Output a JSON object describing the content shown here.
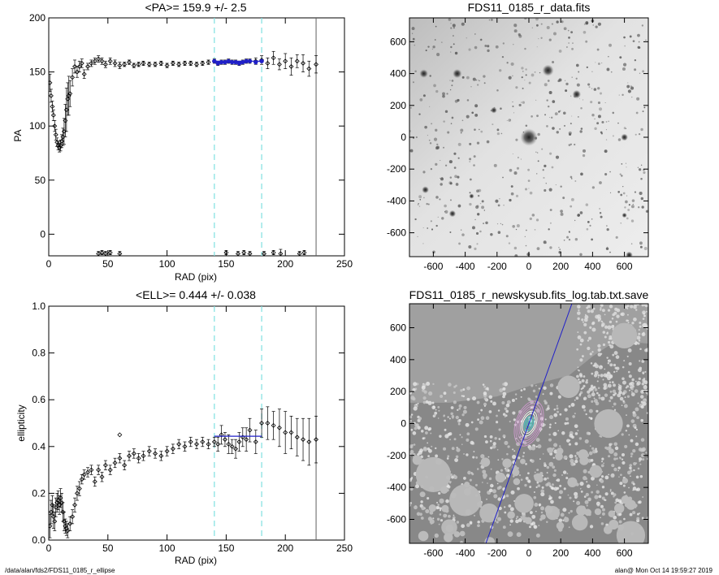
{
  "footer": {
    "left": "/data/alan/fds2/FDS11_0185_r_ellipse",
    "right": "alan@  Mon Oct 14 19:59:27 2019"
  },
  "colors": {
    "points": "#000000",
    "fit": "#2020c8",
    "fit_range": "#7fe0e0",
    "edge_line": "#606060",
    "image_bg_light": "#ededed",
    "image_bg_dark": "#bdbdbd",
    "masked_gray": "#a0a0a0"
  },
  "chart_data": [
    {
      "id": "pa",
      "type": "scatter",
      "title": "<PA>= 159.9 +/-   2.5",
      "xlabel": "RAD (pix)",
      "ylabel": "PA",
      "xlim": [
        0,
        250
      ],
      "ylim": [
        -20,
        200
      ],
      "xticks": [
        0,
        50,
        100,
        150,
        200,
        250
      ],
      "yticks": [
        0,
        50,
        100,
        150,
        200
      ],
      "fit_range": [
        140,
        180
      ],
      "edge_radius": 226,
      "mean": {
        "value": 159.9,
        "err": 2.5
      },
      "series": [
        {
          "x": [
            1,
            2,
            3,
            4,
            5,
            6,
            7,
            8,
            9,
            10,
            11,
            12,
            13,
            14,
            15,
            16,
            17,
            18,
            20,
            22,
            24,
            26,
            28,
            30,
            33,
            36,
            39,
            42,
            45,
            48,
            52,
            56,
            60,
            64,
            68,
            72,
            76,
            80,
            85,
            90,
            95,
            100,
            105,
            110,
            115,
            120,
            125,
            130,
            135,
            140,
            143,
            146,
            149,
            152,
            155,
            158,
            161,
            164,
            167,
            170,
            175,
            180,
            185,
            190,
            195,
            200,
            205,
            210,
            215,
            220,
            226
          ],
          "y": [
            140,
            128,
            118,
            110,
            100,
            92,
            85,
            82,
            80,
            82,
            86,
            90,
            95,
            105,
            115,
            125,
            128,
            130,
            145,
            155,
            150,
            155,
            158,
            148,
            155,
            158,
            160,
            162,
            160,
            157,
            160,
            158,
            156,
            157,
            159,
            156,
            157,
            158,
            157,
            157,
            158,
            156,
            158,
            157,
            158,
            158,
            157,
            158,
            159,
            160,
            158,
            159,
            159,
            160,
            159,
            159,
            158,
            159,
            160,
            160,
            160,
            161,
            158,
            163,
            157,
            160,
            155,
            160,
            158,
            153,
            157
          ],
          "err": [
            8,
            6,
            5,
            5,
            5,
            5,
            4,
            4,
            4,
            5,
            6,
            8,
            12,
            15,
            20,
            15,
            18,
            12,
            8,
            6,
            5,
            5,
            4,
            4,
            3,
            3,
            3,
            3,
            3,
            3,
            3,
            3,
            3,
            2,
            2,
            2,
            2,
            2,
            2,
            2,
            2,
            2,
            2,
            2,
            2,
            2,
            2,
            2,
            2,
            2,
            2,
            2,
            2,
            2,
            2,
            2,
            2,
            2,
            2,
            2,
            3,
            4,
            5,
            6,
            5,
            7,
            8,
            6,
            8,
            7,
            8
          ]
        },
        {
          "name": "wrapped",
          "x": [
            42,
            45,
            48,
            52,
            60,
            150,
            160,
            165,
            170,
            182,
            190,
            196,
            212,
            216
          ],
          "y": [
            -18,
            -17,
            -18,
            -17,
            -18,
            -17,
            -18,
            -17,
            -18,
            -18,
            -17,
            -18,
            -18,
            -17
          ],
          "err": [
            2,
            2,
            2,
            2,
            2,
            2,
            2,
            2,
            2,
            2,
            2,
            4,
            2,
            2
          ]
        }
      ],
      "fit_points": {
        "x": [
          140,
          143,
          146,
          149,
          152,
          155,
          158,
          161,
          164,
          167,
          170,
          175,
          180
        ],
        "y": [
          160,
          158,
          159,
          159,
          160,
          159,
          159,
          158,
          159,
          160,
          160,
          159,
          160
        ]
      }
    },
    {
      "id": "ell",
      "type": "scatter",
      "title": "<ELL>= 0.444 +/-  0.038",
      "xlabel": "RAD (pix)",
      "ylabel": "ellipticity",
      "xlim": [
        0,
        250
      ],
      "ylim": [
        0.0,
        1.0
      ],
      "xticks": [
        0,
        50,
        100,
        150,
        200,
        250
      ],
      "yticks": [
        0.0,
        0.2,
        0.4,
        0.6,
        0.8,
        1.0
      ],
      "fit_range": [
        140,
        180
      ],
      "edge_radius": 226,
      "mean": {
        "value": 0.444,
        "err": 0.038
      },
      "series": [
        {
          "x": [
            1,
            2,
            3,
            4,
            5,
            6,
            7,
            8,
            9,
            10,
            11,
            12,
            13,
            14,
            15,
            16,
            18,
            20,
            22,
            24,
            26,
            28,
            30,
            33,
            36,
            39,
            42,
            45,
            48,
            52,
            56,
            60,
            64,
            68,
            72,
            76,
            80,
            85,
            90,
            95,
            100,
            105,
            110,
            115,
            120,
            125,
            130,
            135,
            140,
            143,
            146,
            149,
            152,
            155,
            158,
            161,
            164,
            167,
            170,
            175,
            180,
            185,
            190,
            195,
            200,
            205,
            210,
            215,
            220,
            226
          ],
          "y": [
            0.06,
            0.12,
            0.15,
            0.1,
            0.08,
            0.14,
            0.16,
            0.17,
            0.15,
            0.18,
            0.16,
            0.12,
            0.08,
            0.06,
            0.05,
            0.04,
            0.07,
            0.1,
            0.15,
            0.2,
            0.22,
            0.26,
            0.28,
            0.29,
            0.3,
            0.25,
            0.3,
            0.27,
            0.32,
            0.3,
            0.33,
            0.35,
            0.32,
            0.36,
            0.37,
            0.35,
            0.36,
            0.38,
            0.37,
            0.36,
            0.38,
            0.39,
            0.41,
            0.4,
            0.42,
            0.41,
            0.42,
            0.41,
            0.42,
            0.41,
            0.45,
            0.43,
            0.41,
            0.4,
            0.39,
            0.42,
            0.44,
            0.43,
            0.47,
            0.42,
            0.5,
            0.5,
            0.49,
            0.48,
            0.46,
            0.46,
            0.44,
            0.43,
            0.42,
            0.43
          ],
          "err": [
            0.05,
            0.05,
            0.04,
            0.05,
            0.04,
            0.04,
            0.04,
            0.04,
            0.04,
            0.04,
            0.04,
            0.04,
            0.04,
            0.03,
            0.03,
            0.03,
            0.03,
            0.03,
            0.03,
            0.03,
            0.03,
            0.02,
            0.02,
            0.02,
            0.02,
            0.02,
            0.02,
            0.02,
            0.02,
            0.02,
            0.02,
            0.02,
            0.02,
            0.02,
            0.02,
            0.02,
            0.02,
            0.02,
            0.02,
            0.02,
            0.02,
            0.02,
            0.02,
            0.02,
            0.02,
            0.02,
            0.02,
            0.02,
            0.02,
            0.03,
            0.04,
            0.03,
            0.04,
            0.03,
            0.04,
            0.04,
            0.04,
            0.05,
            0.05,
            0.05,
            0.06,
            0.07,
            0.06,
            0.08,
            0.09,
            0.07,
            0.08,
            0.09,
            0.1,
            0.1
          ]
        },
        {
          "name": "outlier",
          "x": [
            60
          ],
          "y": [
            0.45
          ],
          "err": [
            0.0
          ]
        }
      ],
      "fit_points": {
        "x": [
          140,
          180
        ],
        "y": [
          0.444,
          0.444
        ]
      }
    },
    {
      "id": "img1",
      "type": "heatmap",
      "title": "FDS11_0185_r_data.fits",
      "xlim": [
        -750,
        750
      ],
      "ylim": [
        -750,
        750
      ],
      "xticks": [
        -600,
        -400,
        -200,
        0,
        200,
        400,
        600
      ],
      "yticks": [
        -600,
        -400,
        -200,
        0,
        200,
        400,
        600
      ],
      "sources": [
        {
          "x": -660,
          "y": 400,
          "r": 30
        },
        {
          "x": -450,
          "y": 400,
          "r": 32
        },
        {
          "x": -220,
          "y": 170,
          "r": 22
        },
        {
          "x": 120,
          "y": 420,
          "r": 40
        },
        {
          "x": 300,
          "y": 270,
          "r": 30
        },
        {
          "x": 0,
          "y": 0,
          "r": 60
        },
        {
          "x": 600,
          "y": 0,
          "r": 25
        },
        {
          "x": -650,
          "y": -330,
          "r": 25
        },
        {
          "x": -360,
          "y": -370,
          "r": 18
        },
        {
          "x": -480,
          "y": -480,
          "r": 24
        },
        {
          "x": 600,
          "y": -490,
          "r": 18
        },
        {
          "x": 630,
          "y": -740,
          "r": 25
        }
      ]
    },
    {
      "id": "img2",
      "type": "heatmap",
      "title": "FDS11_0185_r_newskysub.fits_log.tab.txt.save",
      "xlim": [
        -750,
        750
      ],
      "ylim": [
        -750,
        750
      ],
      "xticks": [
        -600,
        -400,
        -200,
        0,
        200,
        400,
        600
      ],
      "yticks": [
        -600,
        -400,
        -200,
        0,
        200,
        400,
        600
      ],
      "pa_line": {
        "x1": -270,
        "y1": -750,
        "x2": 270,
        "y2": 750
      },
      "ellipses": {
        "count": 9,
        "pa": 159.9,
        "ell": 0.444,
        "max_r": 226
      }
    }
  ]
}
